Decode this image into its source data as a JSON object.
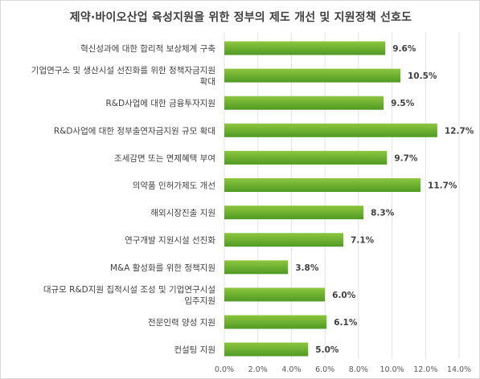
{
  "chart_data": {
    "type": "bar",
    "orientation": "horizontal",
    "title": "제약·바이오산업 육성지원을 위한 정부의 제도 개선 및 지원정책 선호도",
    "categories": [
      [
        "혁신성과에 대한 합리적 보상체계 구축"
      ],
      [
        "기업연구소 및 생산시설 선진화를 위한 정책자금지원",
        "확대"
      ],
      [
        "R&D사업에 대한 금융투자지원"
      ],
      [
        "R&D사업에 대한 정부출연자금지원 규모 확대"
      ],
      [
        "조세감면 또는 면제혜택 부여"
      ],
      [
        "의약품 인허가제도 개선"
      ],
      [
        "해외시장진출 지원"
      ],
      [
        "연구개발 지원시설 선진화"
      ],
      [
        "M&A 활성화를 위한 정책지원"
      ],
      [
        "대규모 R&D지원 집적시설 조성 및 기업연구시설",
        "입주지원"
      ],
      [
        "전문인력 양성 지원"
      ],
      [
        "컨설팅 지원"
      ]
    ],
    "values": [
      9.6,
      10.5,
      9.5,
      12.7,
      9.7,
      11.7,
      8.3,
      7.1,
      3.8,
      6.0,
      6.1,
      5.0
    ],
    "value_labels": [
      "9.6%",
      "10.5%",
      "9.5%",
      "12.7%",
      "9.7%",
      "11.7%",
      "8.3%",
      "7.1%",
      "3.8%",
      "6.0%",
      "6.1%",
      "5.0%"
    ],
    "xlim": [
      0,
      14
    ],
    "xticks": [
      "0.0%",
      "2.0%",
      "4.0%",
      "6.0%",
      "8.0%",
      "10.0%",
      "12.0%",
      "14.0%"
    ],
    "grid": "vertical",
    "legend": "none",
    "bar_color_top": "#8dc63f",
    "bar_color_bottom": "#4f9a23"
  }
}
